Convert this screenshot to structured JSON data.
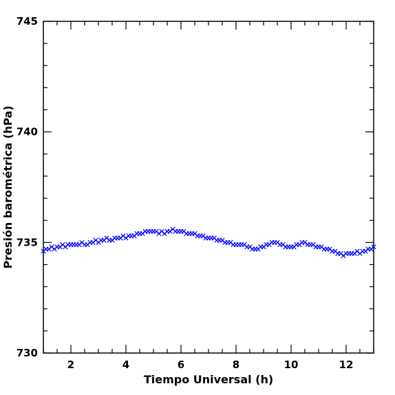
{
  "chart_data": {
    "type": "scatter",
    "xlabel": "Tiempo Universal (h)",
    "ylabel": "Presión barométrica (hPa)",
    "xlim": [
      1,
      13
    ],
    "ylim": [
      730,
      745
    ],
    "x_ticks": [
      2,
      4,
      6,
      8,
      10,
      12
    ],
    "y_ticks": [
      730,
      735,
      740,
      745
    ],
    "marker": "x",
    "marker_color": "#0000ff",
    "grid": false,
    "series": [
      {
        "x": [
          1.0,
          1.1,
          1.2,
          1.3,
          1.4,
          1.5,
          1.6,
          1.7,
          1.8,
          1.9,
          2.0,
          2.1,
          2.2,
          2.3,
          2.4,
          2.5,
          2.6,
          2.7,
          2.8,
          2.9,
          3.0,
          3.1,
          3.2,
          3.3,
          3.4,
          3.5,
          3.6,
          3.7,
          3.8,
          3.9,
          4.0,
          4.1,
          4.2,
          4.3,
          4.4,
          4.5,
          4.6,
          4.7,
          4.8,
          4.9,
          5.0,
          5.1,
          5.2,
          5.3,
          5.4,
          5.5,
          5.6,
          5.7,
          5.8,
          5.9,
          6.0,
          6.1,
          6.2,
          6.3,
          6.4,
          6.5,
          6.6,
          6.7,
          6.8,
          6.9,
          7.0,
          7.1,
          7.2,
          7.3,
          7.4,
          7.5,
          7.6,
          7.7,
          7.8,
          7.9,
          8.0,
          8.1,
          8.2,
          8.3,
          8.4,
          8.5,
          8.6,
          8.7,
          8.8,
          8.9,
          9.0,
          9.1,
          9.2,
          9.3,
          9.4,
          9.5,
          9.6,
          9.7,
          9.8,
          9.9,
          10.0,
          10.1,
          10.2,
          10.3,
          10.4,
          10.5,
          10.6,
          10.7,
          10.8,
          10.9,
          11.0,
          11.1,
          11.2,
          11.3,
          11.4,
          11.5,
          11.6,
          11.7,
          11.8,
          11.9,
          12.0,
          12.1,
          12.2,
          12.3,
          12.4,
          12.5,
          12.6,
          12.7,
          12.8,
          12.9,
          13.0
        ],
        "y": [
          734.6,
          734.7,
          734.7,
          734.8,
          734.7,
          734.8,
          734.8,
          734.9,
          734.8,
          734.9,
          734.9,
          734.9,
          734.9,
          734.9,
          735.0,
          734.9,
          734.9,
          735.0,
          735.0,
          735.1,
          735.0,
          735.1,
          735.1,
          735.2,
          735.1,
          735.1,
          735.2,
          735.2,
          735.2,
          735.3,
          735.2,
          735.3,
          735.3,
          735.3,
          735.4,
          735.4,
          735.4,
          735.5,
          735.5,
          735.5,
          735.5,
          735.5,
          735.4,
          735.5,
          735.4,
          735.5,
          735.5,
          735.6,
          735.5,
          735.5,
          735.5,
          735.5,
          735.4,
          735.4,
          735.4,
          735.4,
          735.3,
          735.3,
          735.3,
          735.2,
          735.2,
          735.2,
          735.2,
          735.1,
          735.1,
          735.1,
          735.0,
          735.0,
          735.0,
          734.9,
          734.9,
          734.9,
          734.9,
          734.9,
          734.8,
          734.8,
          734.7,
          734.7,
          734.7,
          734.8,
          734.8,
          734.9,
          734.9,
          735.0,
          735.0,
          735.0,
          734.9,
          734.9,
          734.8,
          734.8,
          734.8,
          734.8,
          734.9,
          734.9,
          735.0,
          735.0,
          734.9,
          734.9,
          734.9,
          734.8,
          734.8,
          734.8,
          734.7,
          734.7,
          734.7,
          734.6,
          734.6,
          734.5,
          734.5,
          734.4,
          734.5,
          734.5,
          734.5,
          734.5,
          734.6,
          734.5,
          734.6,
          734.6,
          734.7,
          734.7,
          734.8
        ]
      }
    ]
  }
}
